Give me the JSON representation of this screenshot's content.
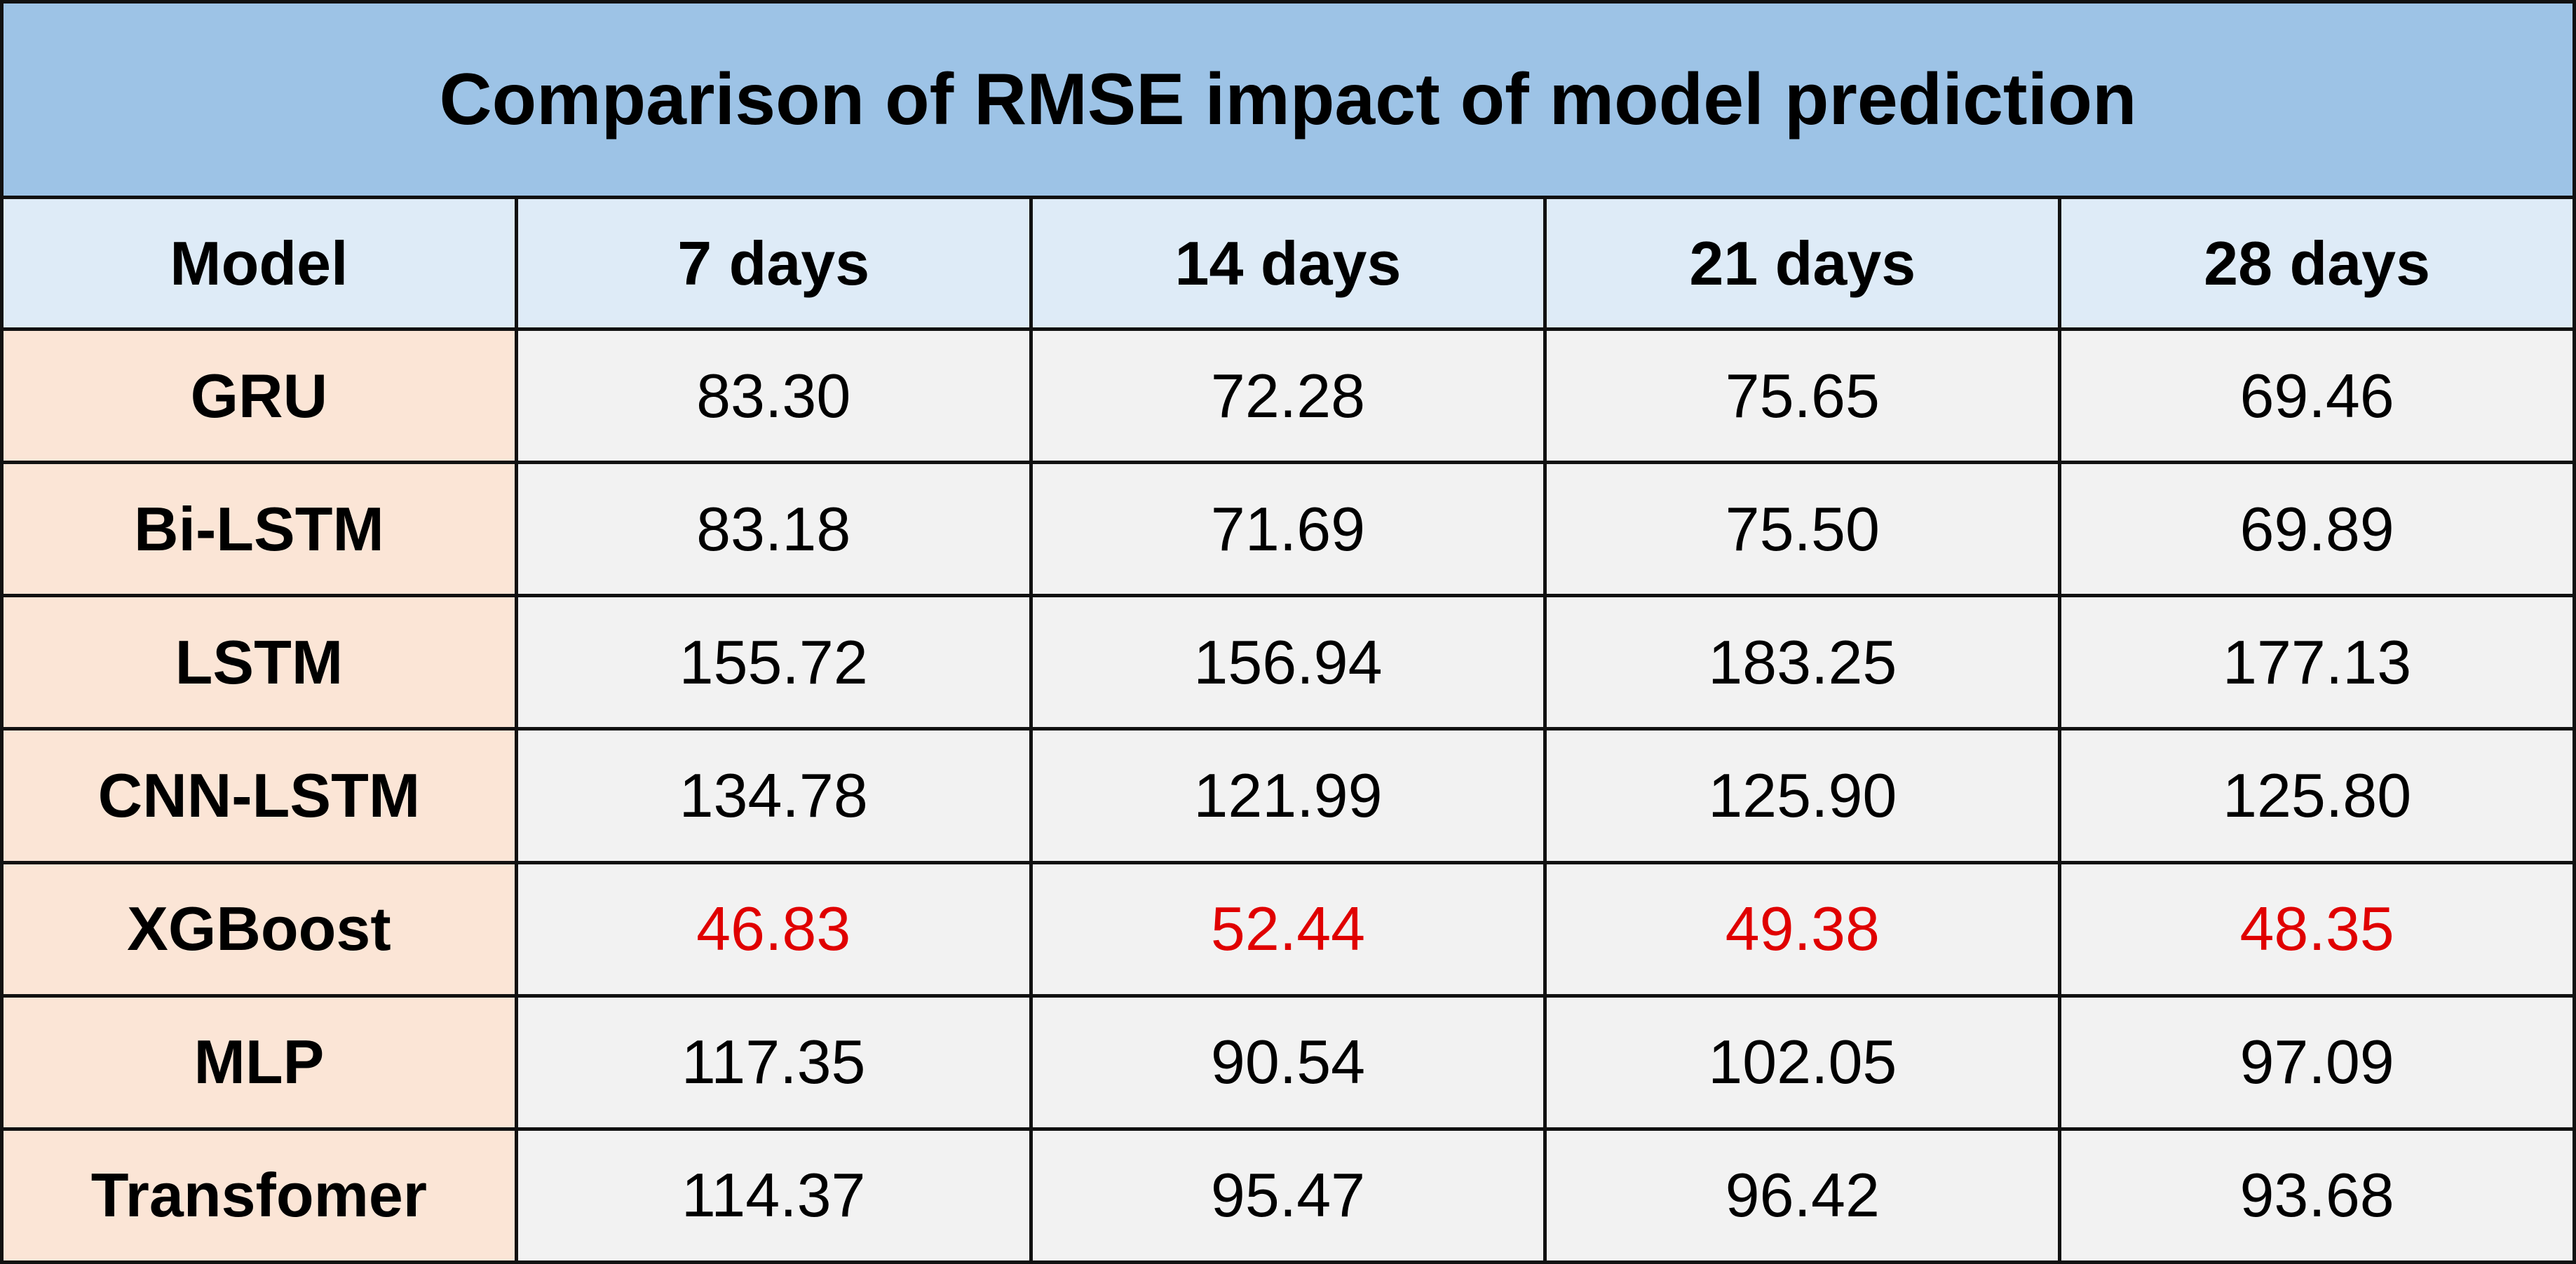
{
  "chart_data": {
    "type": "table",
    "title": "Comparison of RMSE impact of model prediction",
    "columns": [
      "Model",
      "7 days",
      "14 days",
      "21 days",
      "28 days"
    ],
    "rows": [
      {
        "model": "GRU",
        "values": [
          "83.30",
          "72.28",
          "75.65",
          "69.46"
        ],
        "highlight": false
      },
      {
        "model": "Bi-LSTM",
        "values": [
          "83.18",
          "71.69",
          "75.50",
          "69.89"
        ],
        "highlight": false
      },
      {
        "model": "LSTM",
        "values": [
          "155.72",
          "156.94",
          "183.25",
          "177.13"
        ],
        "highlight": false
      },
      {
        "model": "CNN-LSTM",
        "values": [
          "134.78",
          "121.99",
          "125.90",
          "125.80"
        ],
        "highlight": false
      },
      {
        "model": "XGBoost",
        "values": [
          "46.83",
          "52.44",
          "49.38",
          "48.35"
        ],
        "highlight": true
      },
      {
        "model": "MLP",
        "values": [
          "117.35",
          "90.54",
          "102.05",
          "97.09"
        ],
        "highlight": false
      },
      {
        "model": "Transfomer",
        "values": [
          "114.37",
          "95.47",
          "96.42",
          "93.68"
        ],
        "highlight": false
      }
    ]
  },
  "colors": {
    "title_background": "#9dc3e6",
    "header_background": "#deebf7",
    "model_column_background": "#fbe5d6",
    "value_background": "#f2f2f2",
    "highlight_text": "#e00000",
    "text": "#000000",
    "border": "#111111"
  }
}
